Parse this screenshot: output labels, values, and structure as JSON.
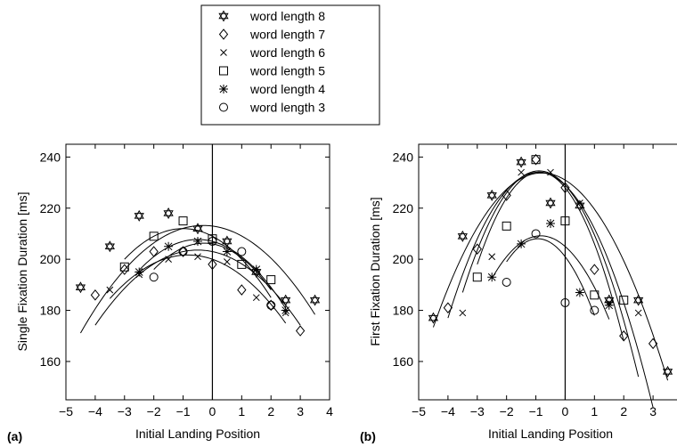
{
  "legend": {
    "entries": [
      {
        "label": "word length 8",
        "marker": "hexagram"
      },
      {
        "label": "word length 7",
        "marker": "diamond"
      },
      {
        "label": "word length 6",
        "marker": "x"
      },
      {
        "label": "word length 5",
        "marker": "square"
      },
      {
        "label": "word length 4",
        "marker": "asterisk"
      },
      {
        "label": "word length 3",
        "marker": "circle"
      }
    ]
  },
  "chart_data": [
    {
      "type": "scatter",
      "panel_label": "(a)",
      "xlabel": "Initial Landing Position",
      "ylabel": "Single Fixation Duration [ms]",
      "xlim": [
        -5,
        4
      ],
      "ylim": [
        145,
        245
      ],
      "xticks": [
        -5,
        -4,
        -3,
        -2,
        -1,
        0,
        1,
        2,
        3,
        4
      ],
      "yticks": [
        160,
        180,
        200,
        220,
        240
      ],
      "vertical_line_x": 0,
      "series": [
        {
          "name": "word length 8",
          "marker": "hexagram",
          "x": [
            -4.5,
            -3.5,
            -2.5,
            -1.5,
            -0.5,
            0.5,
            1.5,
            2.5,
            3.5
          ],
          "y": [
            189,
            205,
            217,
            218,
            212,
            207,
            195,
            184,
            184
          ],
          "fit": {
            "x": [
              -4.5,
              3.5
            ],
            "a": -2.4,
            "b": -1.5,
            "c": 213
          }
        },
        {
          "name": "word length 7",
          "marker": "diamond",
          "x": [
            -4,
            -3,
            -2,
            -1,
            0,
            1,
            2,
            3
          ],
          "y": [
            186,
            196,
            203,
            203,
            198,
            188,
            182,
            172
          ],
          "fit": {
            "x": [
              -4,
              3
            ],
            "a": -2.4,
            "b": -2.4,
            "c": 203
          }
        },
        {
          "name": "word length 6",
          "marker": "x",
          "x": [
            -3.5,
            -2.5,
            -1.5,
            -0.5,
            0.5,
            1.5,
            2.5
          ],
          "y": [
            188,
            194,
            200,
            201,
            199,
            185,
            179
          ],
          "fit": {
            "x": [
              -3.5,
              2.5
            ],
            "a": -2.4,
            "b": -4.0,
            "c": 200
          }
        },
        {
          "name": "word length 5",
          "marker": "square",
          "x": [
            -3,
            -2,
            -1,
            0,
            1,
            2
          ],
          "y": [
            197,
            209,
            215,
            208,
            198,
            192
          ],
          "fit": {
            "x": [
              -3,
              2
            ],
            "a": -3.0,
            "b": -6.0,
            "c": 209
          }
        },
        {
          "name": "word length 4",
          "marker": "asterisk",
          "x": [
            -2.5,
            -1.5,
            -0.5,
            0.5,
            1.5,
            2.5
          ],
          "y": [
            195,
            205,
            207,
            203,
            196,
            180
          ],
          "fit": {
            "x": [
              -2.5,
              2.5
            ],
            "a": -3.0,
            "b": -3.0,
            "c": 207
          }
        },
        {
          "name": "word length 3",
          "marker": "circle",
          "x": [
            -2,
            -1,
            0,
            1,
            2
          ],
          "y": [
            193,
            203,
            207,
            203,
            182
          ],
          "fit": {
            "x": [
              -2,
              2
            ],
            "a": -3.5,
            "b": -2.0,
            "c": 206
          }
        }
      ]
    },
    {
      "type": "scatter",
      "panel_label": "(b)",
      "xlabel": "Initial Landing Position",
      "ylabel": "First Fixation Duration [ms]",
      "xlim": [
        -5,
        4
      ],
      "ylim": [
        145,
        245
      ],
      "xticks": [
        -5,
        -4,
        -3,
        -2,
        -1,
        0,
        1,
        2,
        3,
        4
      ],
      "yticks": [
        160,
        180,
        200,
        220,
        240
      ],
      "vertical_line_x": 0,
      "series": [
        {
          "name": "word length 8",
          "marker": "hexagram",
          "x": [
            -4.5,
            -3.5,
            -2.5,
            -1.5,
            -0.5,
            0.5,
            1.5,
            2.5,
            3.5
          ],
          "y": [
            177,
            209,
            225,
            238,
            222,
            221,
            184,
            184,
            156
          ],
          "fit": {
            "x": [
              -4.5,
              3.5
            ],
            "a": -4.4,
            "b": -7.0,
            "c": 231
          }
        },
        {
          "name": "word length 7",
          "marker": "diamond",
          "x": [
            -4,
            -3,
            -2,
            -1,
            0,
            1,
            2,
            3
          ],
          "y": [
            181,
            204,
            225,
            239,
            228,
            196,
            170,
            167
          ],
          "fit": {
            "x": [
              -4,
              3
            ],
            "a": -6.0,
            "b": -11.0,
            "c": 229
          }
        },
        {
          "name": "word length 6",
          "marker": "x",
          "x": [
            -3.5,
            -2.5,
            -1.5,
            -0.5,
            0.5,
            1.5,
            2.5
          ],
          "y": [
            179,
            201,
            234,
            234,
            222,
            183,
            179
          ],
          "fit": {
            "x": [
              -3.5,
              2.5
            ],
            "a": -7.0,
            "b": -12.5,
            "c": 229
          }
        },
        {
          "name": "word length 5",
          "marker": "square",
          "x": [
            -3,
            -2,
            -1,
            0,
            1,
            2
          ],
          "y": [
            193,
            213,
            239,
            215,
            186,
            184
          ],
          "fit": {
            "x": [
              -3,
              2
            ],
            "a": -8.0,
            "b": -14.0,
            "c": 228
          }
        },
        {
          "name": "word length 4",
          "marker": "asterisk",
          "x": [
            -2.5,
            -1.5,
            -0.5,
            0.5,
            1.5
          ],
          "y": [
            193,
            206,
            214,
            187,
            182
          ],
          "fit": {
            "x": [
              -2.5,
              1.5
            ],
            "a": -6.0,
            "b": -10.0,
            "c": 205
          }
        },
        {
          "name": "word length 3",
          "marker": "circle",
          "x": [
            -2,
            -1,
            0,
            1
          ],
          "y": [
            191,
            210,
            183,
            180
          ],
          "fit": {
            "x": [
              -2,
              1
            ],
            "a": -8.0,
            "b": -15.0,
            "c": 201
          }
        }
      ]
    }
  ]
}
